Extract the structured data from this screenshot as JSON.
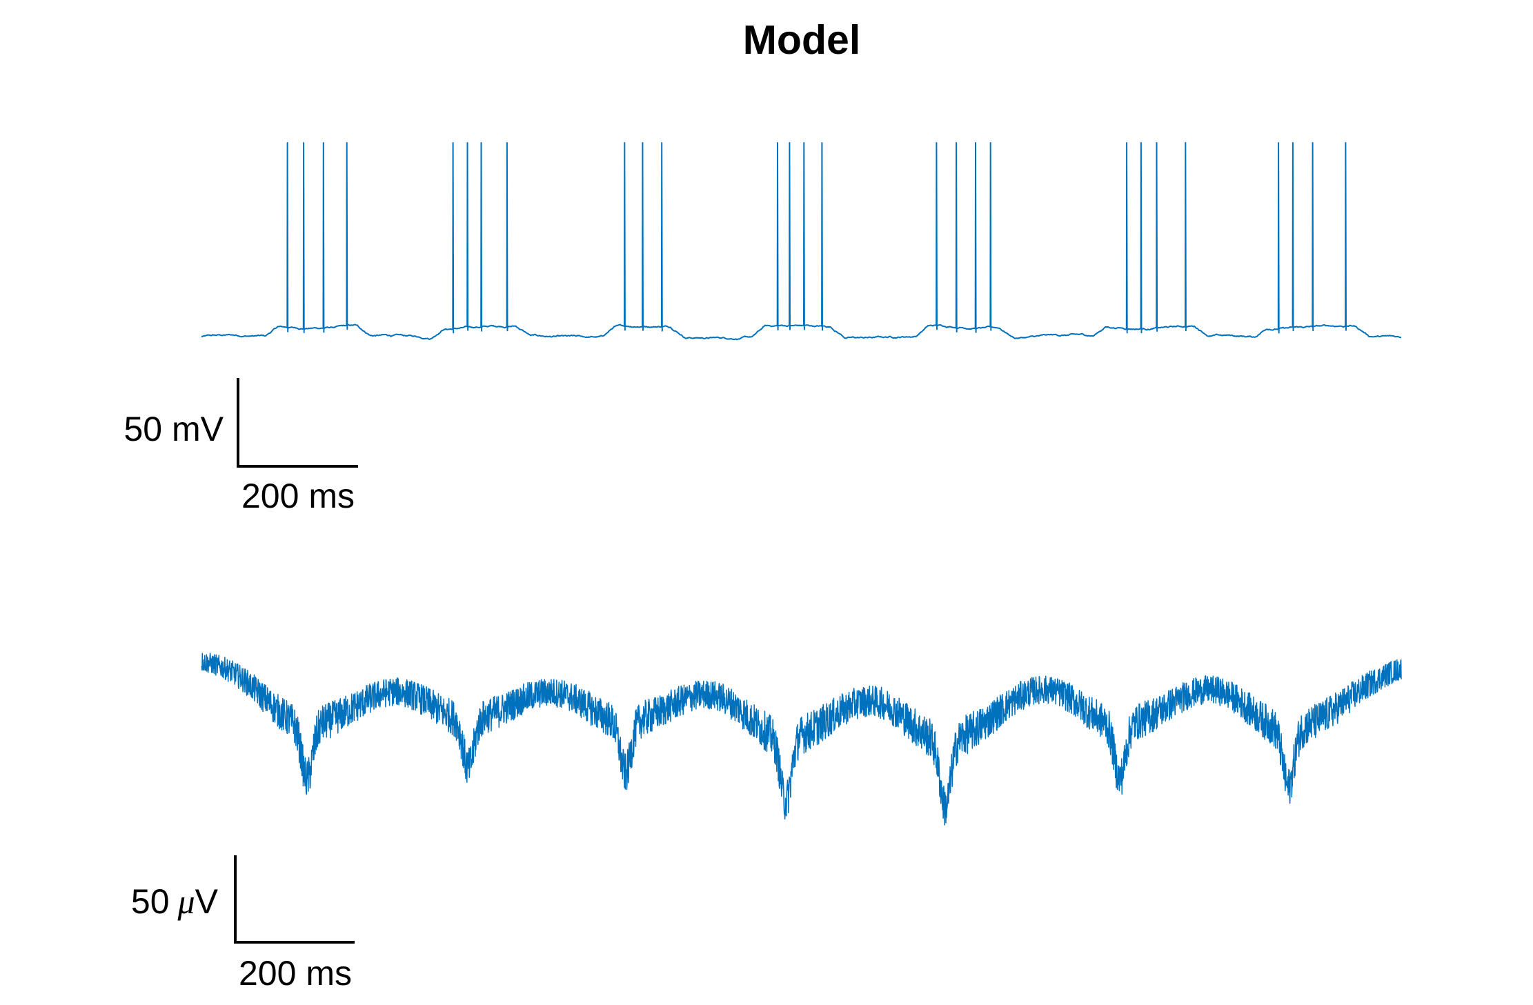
{
  "figure": {
    "title": "Model"
  },
  "colors": {
    "trace": "#0072BD",
    "scalebar": "#000000"
  },
  "chart_data": [
    {
      "type": "line",
      "title": "Model",
      "panel": "membrane-potential",
      "xlabel": "",
      "ylabel": "",
      "x_unit": "ms",
      "y_unit": "mV",
      "duration_ms": 2000,
      "baseline_mV": 0,
      "spike_height_mV": 100,
      "ylim": [
        -10,
        110
      ],
      "bursts": [
        {
          "start_ms": 117,
          "spike_times_ms": [
            143,
            170,
            203,
            242
          ]
        },
        {
          "start_ms": 393,
          "spike_times_ms": [
            419,
            443,
            466,
            509
          ]
        },
        {
          "start_ms": 678,
          "spike_times_ms": [
            705,
            735,
            767
          ]
        },
        {
          "start_ms": 929,
          "spike_times_ms": [
            960,
            980,
            1004,
            1034
          ]
        },
        {
          "start_ms": 1201,
          "spike_times_ms": [
            1225,
            1258,
            1290,
            1315
          ]
        },
        {
          "start_ms": 1497,
          "spike_times_ms": [
            1542,
            1566,
            1592,
            1640
          ]
        },
        {
          "start_ms": 1766,
          "spike_times_ms": [
            1795,
            1819,
            1852,
            1907
          ]
        }
      ],
      "grid": false,
      "axes": "off",
      "scalebar": {
        "x_value": 200,
        "x_unit": "ms",
        "y_value": 50,
        "y_unit": "mV"
      }
    },
    {
      "type": "line",
      "panel": "extracellular-field",
      "xlabel": "",
      "ylabel": "",
      "x_unit": "ms",
      "y_unit": "μV",
      "duration_ms": 2000,
      "baseline_uV": 0,
      "trough_times_ms": [
        176,
        445,
        707,
        974,
        1240,
        1531,
        1812
      ],
      "trough_minima_uV": [
        -97,
        -87,
        -91,
        -114,
        -118,
        -96,
        -103
      ],
      "noise_amplitude_uV": 8,
      "ylim": [
        -125,
        10
      ],
      "grid": false,
      "axes": "off",
      "scalebar": {
        "x_value": 200,
        "x_unit": "ms",
        "y_value": 50,
        "y_unit": "μV"
      }
    }
  ],
  "scalebars": {
    "top": {
      "y_label": "50 mV",
      "x_label": "200 ms"
    },
    "bottom": {
      "y_value_label": "50",
      "y_unit_prefix": "μ",
      "y_unit_suffix": "V",
      "x_label": "200 ms"
    }
  }
}
